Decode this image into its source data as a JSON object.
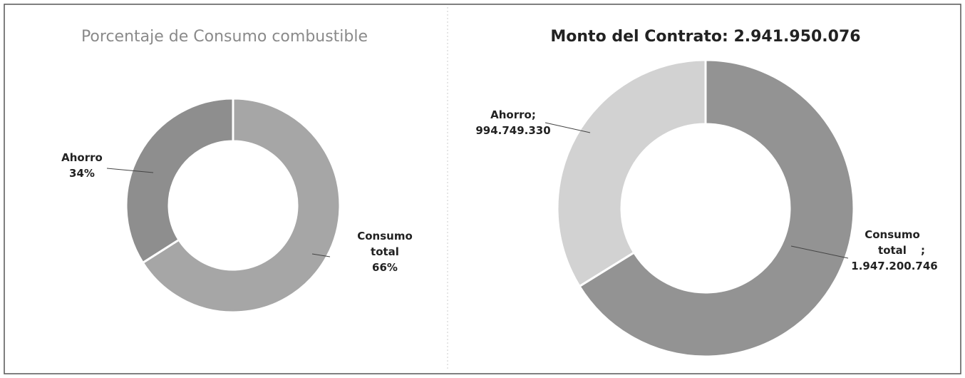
{
  "chart_data": [
    {
      "type": "donut",
      "title": "Porcentaje de Consumo combustible",
      "categories": [
        "Consumo total",
        "Ahorro"
      ],
      "values": [
        66,
        34
      ],
      "value_labels": [
        "66%",
        "34%"
      ],
      "colors": [
        "#a6a6a6",
        "#8e8e8e"
      ]
    },
    {
      "type": "donut",
      "title": "Monto del Contrato: 2.941.950.076",
      "categories": [
        "Consumo total",
        "Ahorro"
      ],
      "values": [
        1947200746,
        994749330
      ],
      "value_labels": [
        "1.947.200.746",
        "994.749.330"
      ],
      "separator": ";",
      "colors": [
        "#939393",
        "#d2d2d2"
      ]
    }
  ]
}
